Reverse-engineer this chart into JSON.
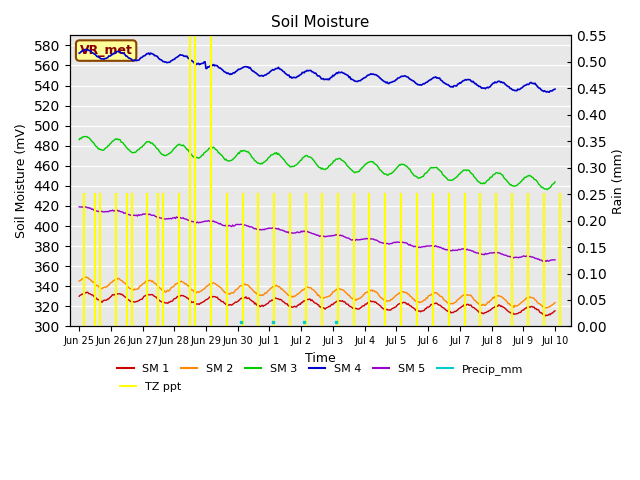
{
  "title": "Soil Moisture",
  "xlabel": "Time",
  "ylabel_left": "Soil Moisture (mV)",
  "ylabel_right": "Rain (mm)",
  "ylim_left": [
    300,
    590
  ],
  "ylim_right": [
    0.0,
    0.55
  ],
  "yticks_left": [
    300,
    320,
    340,
    360,
    380,
    400,
    420,
    440,
    460,
    480,
    500,
    520,
    540,
    560,
    580
  ],
  "yticks_right": [
    0.0,
    0.05,
    0.1,
    0.15,
    0.2,
    0.25,
    0.3,
    0.35,
    0.4,
    0.45,
    0.5,
    0.55
  ],
  "colors": {
    "SM1": "#cc0000",
    "SM2": "#ff8800",
    "SM3": "#00cc00",
    "SM4": "#0000cc",
    "SM5": "#9900cc",
    "Precip_mm": "#00cccc",
    "TZ_ppt": "#ffff00",
    "background": "#e8e8e8"
  },
  "annotation_box": {
    "text": "VR_met",
    "fontsize": 9,
    "facecolor": "#ffff99",
    "edgecolor": "#884400"
  },
  "x_tick_labels": [
    "Jun 25",
    "Jun 26",
    "Jun 27",
    "Jun 28",
    "Jun 29",
    "Jun 30",
    "Jul 1",
    "Jul 2",
    "Jul 3",
    "Jul 4",
    "Jul 5",
    "Jul 6",
    "Jul 7",
    "Jul 8",
    "Jul 9",
    "Jul 10"
  ],
  "n_points": 500,
  "days": 15
}
